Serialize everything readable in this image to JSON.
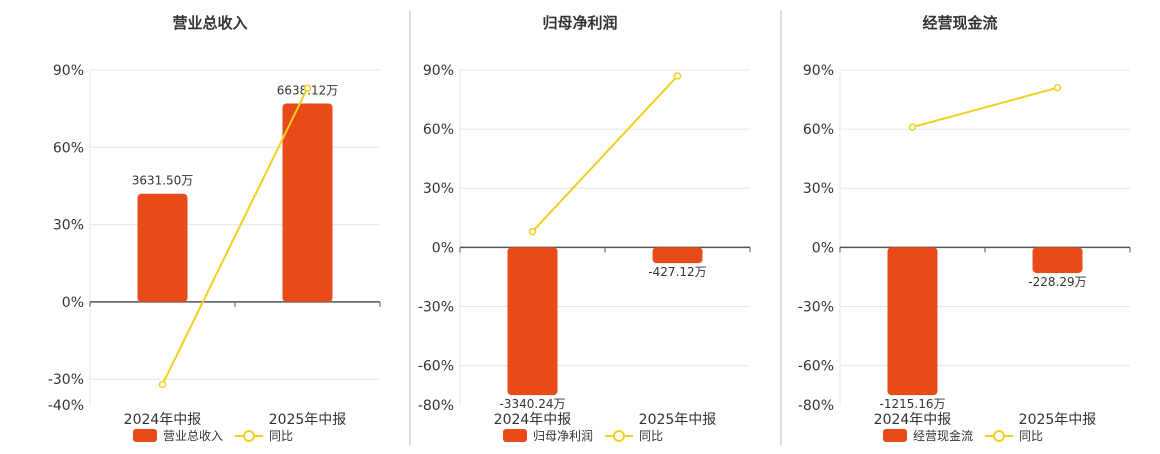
{
  "series_names": {
    "bar_suffix": "",
    "line": "同比"
  },
  "colors": {
    "bar": "#e84a1a",
    "line": "#f0d020",
    "grid": "#e6e6e6",
    "axis": "#555555",
    "divider": "#bbbbbb"
  },
  "chart_data": [
    {
      "type": "bar",
      "title": "营业总收入",
      "categories": [
        "2024年中报",
        "2025年中报"
      ],
      "series": [
        {
          "name": "营业总收入",
          "type": "bar",
          "values_pct": [
            42,
            77
          ],
          "labels": [
            "3631.50万",
            "6638.12万"
          ]
        },
        {
          "name": "同比",
          "type": "line",
          "values": [
            -32,
            83
          ]
        }
      ],
      "yticks": [
        "90%",
        "60%",
        "30%",
        "0%",
        "-30%",
        "-40%"
      ],
      "ylim": [
        -40,
        90
      ]
    },
    {
      "type": "bar",
      "title": "归母净利润",
      "categories": [
        "2024年中报",
        "2025年中报"
      ],
      "series": [
        {
          "name": "归母净利润",
          "type": "bar",
          "values_pct": [
            -75,
            -8
          ],
          "labels": [
            "-3340.24万",
            "-427.12万"
          ]
        },
        {
          "name": "同比",
          "type": "line",
          "values": [
            8,
            87
          ]
        }
      ],
      "yticks": [
        "90%",
        "60%",
        "30%",
        "0%",
        "-30%",
        "-60%",
        "-80%"
      ],
      "ylim": [
        -80,
        90
      ]
    },
    {
      "type": "bar",
      "title": "经营现金流",
      "categories": [
        "2024年中报",
        "2025年中报"
      ],
      "series": [
        {
          "name": "经营现金流",
          "type": "bar",
          "values_pct": [
            -75,
            -13
          ],
          "labels": [
            "-1215.16万",
            "-228.29万"
          ]
        },
        {
          "name": "同比",
          "type": "line",
          "values": [
            61,
            81
          ]
        }
      ],
      "yticks": [
        "90%",
        "60%",
        "30%",
        "0%",
        "-30%",
        "-60%",
        "-80%"
      ],
      "ylim": [
        -80,
        90
      ]
    }
  ]
}
